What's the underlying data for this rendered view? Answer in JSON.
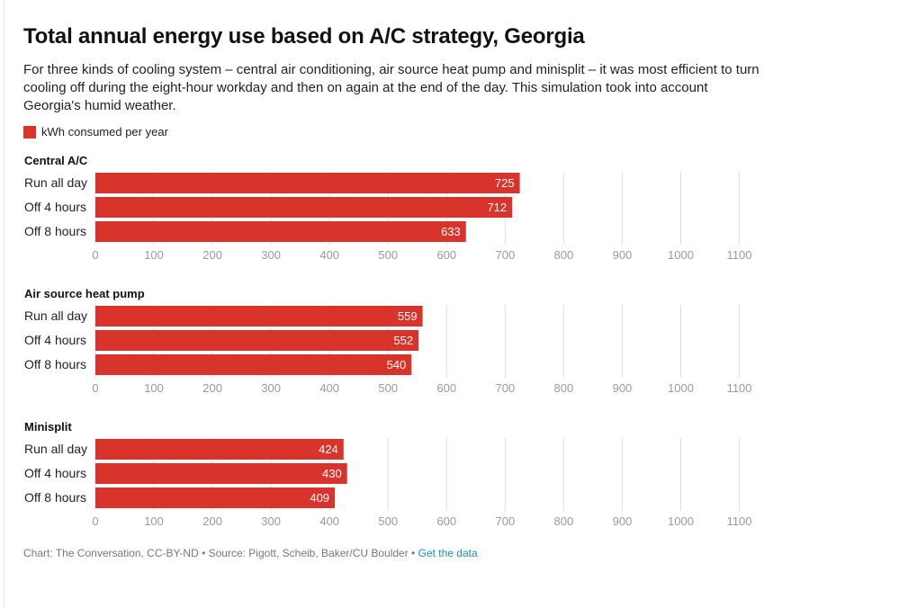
{
  "header": {
    "title": "Total annual energy use based on A/C strategy, Georgia",
    "subtitle": "For three kinds of cooling system – central air conditioning, air source heat pump and minisplit – it was most efficient to turn cooling off during the eight-hour workday and then on again at the end of the day. This simulation took into account Georgia's humid weather."
  },
  "legend": {
    "label": "kWh consumed per year",
    "color": "#d9342b"
  },
  "footer": {
    "credit": "Chart: The Conversation, CC-BY-ND • Source: Pigott, Scheib, Baker/CU Boulder •",
    "link_label": "Get the data"
  },
  "chart_data": [
    {
      "type": "bar",
      "title": "Central A/C",
      "categories": [
        "Run all day",
        "Off 4 hours",
        "Off 8 hours"
      ],
      "series": [
        {
          "name": "kWh consumed per year",
          "values": [
            725,
            712,
            633
          ]
        }
      ],
      "xlim": [
        0,
        1100
      ],
      "ticks": [
        0,
        100,
        200,
        300,
        400,
        500,
        600,
        700,
        800,
        900,
        1000,
        1100
      ],
      "orientation": "horizontal",
      "grid": true
    },
    {
      "type": "bar",
      "title": "Air source heat pump",
      "categories": [
        "Run all day",
        "Off 4 hours",
        "Off 8 hours"
      ],
      "series": [
        {
          "name": "kWh consumed per year",
          "values": [
            559,
            552,
            540
          ]
        }
      ],
      "xlim": [
        0,
        1100
      ],
      "ticks": [
        0,
        100,
        200,
        300,
        400,
        500,
        600,
        700,
        800,
        900,
        1000,
        1100
      ],
      "orientation": "horizontal",
      "grid": true
    },
    {
      "type": "bar",
      "title": "Minisplit",
      "categories": [
        "Run all day",
        "Off 4 hours",
        "Off 8 hours"
      ],
      "series": [
        {
          "name": "kWh consumed per year",
          "values": [
            424,
            430,
            409
          ]
        }
      ],
      "xlim": [
        0,
        1100
      ],
      "ticks": [
        0,
        100,
        200,
        300,
        400,
        500,
        600,
        700,
        800,
        900,
        1000,
        1100
      ],
      "orientation": "horizontal",
      "grid": true
    }
  ]
}
